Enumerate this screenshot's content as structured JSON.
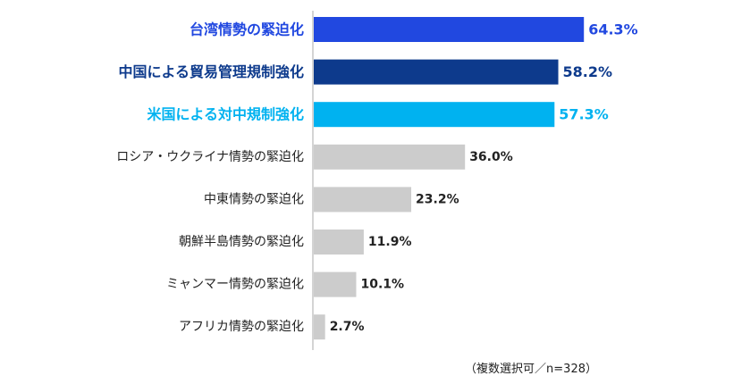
{
  "chart_data": {
    "type": "bar",
    "orientation": "horizontal",
    "categories": [
      "台湾情勢の緊迫化",
      "中国による貿易管理規制強化",
      "米国による対中規制強化",
      "ロシア・ウクライナ情勢の緊迫化",
      "中東情勢の緊迫化",
      "朝鮮半島情勢の緊迫化",
      "ミャンマー情勢の緊迫化",
      "アフリカ情勢の緊迫化"
    ],
    "values": [
      64.3,
      58.2,
      57.3,
      36.0,
      23.2,
      11.9,
      10.1,
      2.7
    ],
    "value_labels": [
      "64.3%",
      "58.2%",
      "57.3%",
      "36.0%",
      "23.2%",
      "11.9%",
      "10.1%",
      "2.7%"
    ],
    "bar_colors": [
      "#2148e0",
      "#0d3a8c",
      "#00b2f0",
      "#cccccc",
      "#cccccc",
      "#cccccc",
      "#cccccc",
      "#cccccc"
    ],
    "label_colors": [
      "#2148e0",
      "#0d3a8c",
      "#00b2f0",
      "#222222",
      "#222222",
      "#222222",
      "#222222",
      "#222222"
    ],
    "highlight": [
      true,
      true,
      true,
      false,
      false,
      false,
      false,
      false
    ],
    "xlim": [
      0,
      100
    ],
    "grid": false,
    "title": "",
    "xlabel": "",
    "ylabel": ""
  },
  "note": "（複数選択可／n=328）"
}
